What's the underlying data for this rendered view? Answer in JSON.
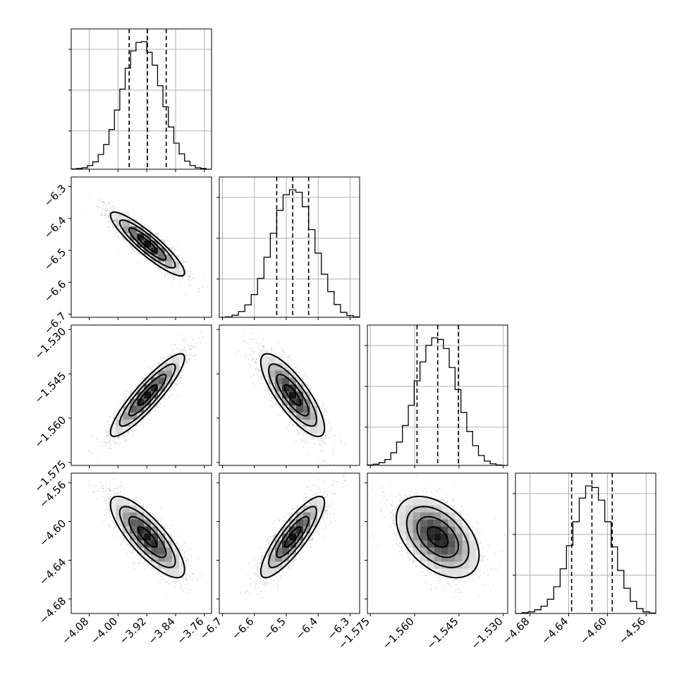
{
  "chart_data": {
    "type": "corner",
    "parameters": [
      {
        "index": 0,
        "range": [
          -4.13,
          -3.74
        ],
        "ticks": [
          -4.08,
          -4.0,
          -3.92,
          -3.84,
          -3.76
        ],
        "tick_labels": [
          "−4.08",
          "−4.00",
          "−3.92",
          "−3.84",
          "−3.76"
        ],
        "median": -3.918,
        "q16": -3.969,
        "q84": -3.866
      },
      {
        "index": 1,
        "range": [
          -6.71,
          -6.27
        ],
        "ticks": [
          -6.7,
          -6.6,
          -6.5,
          -6.4,
          -6.3
        ],
        "tick_labels": [
          "−6.7",
          "−6.6",
          "−6.5",
          "−6.4",
          "−6.3"
        ],
        "median": -6.48,
        "q16": -6.53,
        "q84": -6.43
      },
      {
        "index": 2,
        "range": [
          -1.576,
          -1.5285
        ],
        "ticks": [
          -1.575,
          -1.56,
          -1.545,
          -1.53
        ],
        "tick_labels": [
          "−1.575",
          "−1.560",
          "−1.545",
          "−1.530"
        ],
        "median": -1.5522,
        "q16": -1.5592,
        "q84": -1.5452
      },
      {
        "index": 3,
        "range": [
          -4.695,
          -4.55
        ],
        "ticks": [
          -4.68,
          -4.64,
          -4.6,
          -4.56
        ],
        "tick_labels": [
          "−4.68",
          "−4.64",
          "−4.60",
          "−4.56"
        ],
        "median": -4.616,
        "q16": -4.637,
        "q84": -4.595
      }
    ],
    "correlations": [
      {
        "pair": [
          0,
          1
        ],
        "rho": -0.9
      },
      {
        "pair": [
          0,
          2
        ],
        "rho": 0.9
      },
      {
        "pair": [
          1,
          2
        ],
        "rho": -0.8
      },
      {
        "pair": [
          0,
          3
        ],
        "rho": -0.8
      },
      {
        "pair": [
          1,
          3
        ],
        "rho": 0.85
      },
      {
        "pair": [
          2,
          3
        ],
        "rho": -0.45
      }
    ],
    "histograms": [
      {
        "param": 0,
        "counts": [
          1,
          2,
          4,
          10,
          20,
          40,
          67,
          108,
          161,
          218,
          275,
          322,
          345,
          347,
          318,
          283,
          227,
          170,
          115,
          71,
          42,
          22,
          10,
          4,
          2,
          0
        ]
      },
      {
        "param": 1,
        "counts": [
          0,
          1,
          5,
          14,
          30,
          55,
          94,
          145,
          203,
          258,
          296,
          308,
          302,
          267,
          212,
          155,
          104,
          62,
          31,
          12,
          4,
          1
        ]
      },
      {
        "param": 2,
        "counts": [
          1,
          3,
          7,
          15,
          32,
          59,
          101,
          152,
          214,
          262,
          304,
          323,
          319,
          296,
          248,
          192,
          134,
          86,
          50,
          25,
          11,
          4,
          1,
          0
        ]
      },
      {
        "param": 3,
        "counts": [
          0,
          2,
          4,
          9,
          18,
          35,
          66,
          110,
          167,
          226,
          284,
          314,
          310,
          279,
          226,
          164,
          106,
          62,
          30,
          12,
          4,
          1
        ]
      }
    ],
    "quantile_lines": "16%, 50%, 84%",
    "grid": true
  }
}
